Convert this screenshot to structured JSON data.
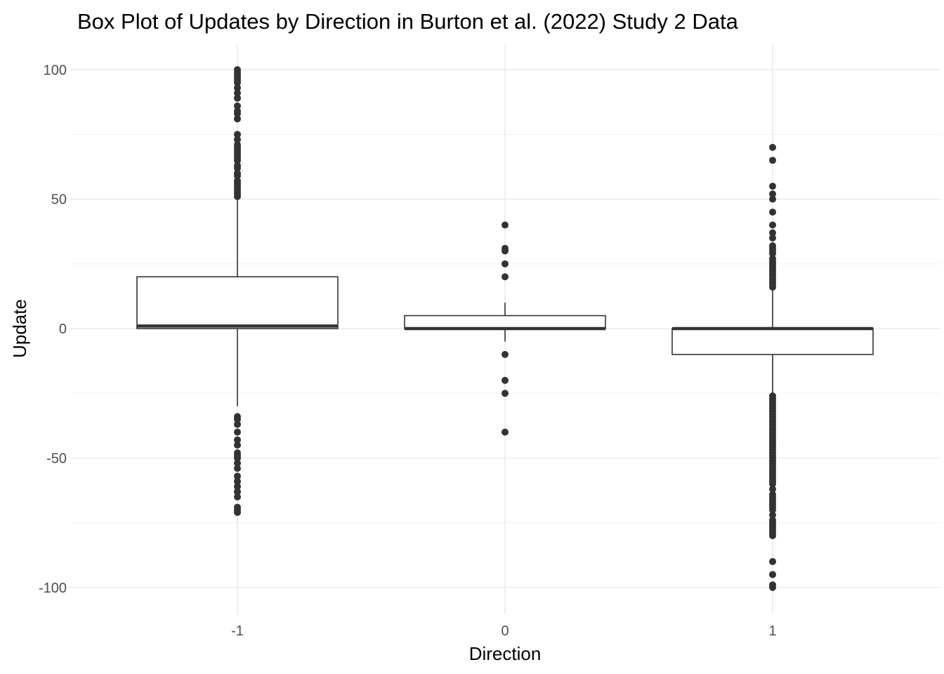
{
  "chart_data": {
    "type": "box",
    "title": "Box Plot of Updates by Direction in Burton et al. (2022) Study 2 Data",
    "xlabel": "Direction",
    "ylabel": "Update",
    "ylim": [
      -110,
      110
    ],
    "y_ticks": [
      {
        "value": 100,
        "label": "100"
      },
      {
        "value": 50,
        "label": "50"
      },
      {
        "value": 0,
        "label": "0"
      },
      {
        "value": -50,
        "label": "-50"
      },
      {
        "value": -100,
        "label": "-100"
      }
    ],
    "categories": [
      "-1",
      "0",
      "1"
    ],
    "boxes": [
      {
        "category": "-1",
        "q1": 0,
        "median": 1,
        "q3": 20,
        "whisker_low": -30,
        "whisker_high": 50,
        "outliers": [
          100,
          99,
          98,
          97,
          96,
          95,
          93,
          91,
          89,
          86,
          84,
          83,
          81,
          75,
          73,
          71,
          70,
          69,
          68,
          67,
          66,
          65,
          63,
          62,
          60,
          59,
          57,
          56,
          55,
          54,
          53,
          52,
          51,
          -34,
          -35,
          -37,
          -40,
          -43,
          -45,
          -48,
          -49,
          -50,
          -52,
          -54,
          -57,
          -59,
          -61,
          -63,
          -65,
          -69,
          -70,
          -71
        ]
      },
      {
        "category": "0",
        "q1": 0,
        "median": 0,
        "q3": 5,
        "whisker_low": -5,
        "whisker_high": 10,
        "outliers": [
          40,
          31,
          30,
          25,
          20,
          -10,
          -20,
          -25,
          -40
        ]
      },
      {
        "category": "1",
        "q1": -10,
        "median": 0,
        "q3": 0,
        "whisker_low": -25,
        "whisker_high": 15,
        "outliers": [
          70,
          65,
          55,
          52,
          50,
          45,
          40,
          37,
          35,
          32,
          31,
          30,
          29,
          27,
          26,
          25,
          24,
          23,
          22,
          21,
          20,
          19,
          18,
          17,
          16,
          -26,
          -27,
          -28,
          -29,
          -30,
          -31,
          -32,
          -33,
          -34,
          -35,
          -36,
          -37,
          -38,
          -39,
          -40,
          -41,
          -42,
          -43,
          -44,
          -45,
          -46,
          -47,
          -48,
          -49,
          -50,
          -51,
          -52,
          -53,
          -54,
          -55,
          -56,
          -57,
          -58,
          -59,
          -60,
          -62,
          -64,
          -65,
          -66,
          -67,
          -68,
          -69,
          -70,
          -72,
          -74,
          -75,
          -76,
          -77,
          -78,
          -79,
          -80,
          -90,
          -95,
          -99,
          -100
        ]
      }
    ],
    "grid": true,
    "legend": "none",
    "colors": {
      "box_outline": "#333333",
      "points": "#333333",
      "grid": "#ebebeb",
      "background": "#ffffff"
    }
  }
}
